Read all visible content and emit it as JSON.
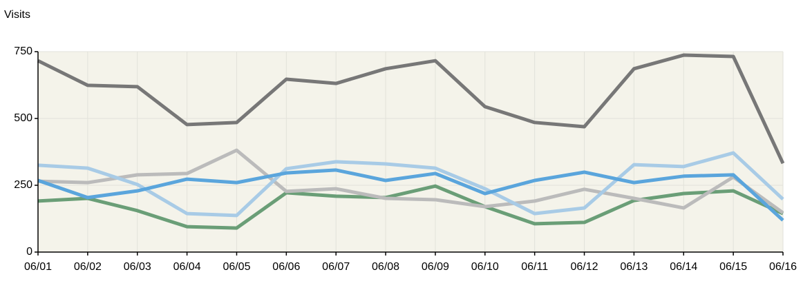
{
  "chart_data": {
    "type": "line",
    "title": "Visits",
    "categories": [
      "06/01",
      "06/02",
      "06/03",
      "06/04",
      "06/05",
      "06/06",
      "06/07",
      "06/08",
      "06/09",
      "06/10",
      "06/11",
      "06/12",
      "06/13",
      "06/14",
      "06/15",
      "06/16"
    ],
    "series": [
      {
        "color": "#6a9e77",
        "values": [
          191,
          201,
          155,
          95,
          90,
          222,
          209,
          204,
          247,
          170,
          106,
          111,
          193,
          219,
          229,
          144
        ]
      },
      {
        "color": "#bbbbbb",
        "values": [
          265,
          260,
          289,
          294,
          381,
          227,
          237,
          201,
          196,
          170,
          191,
          235,
          201,
          165,
          281,
          147
        ]
      },
      {
        "color": "#a8cbe6",
        "values": [
          325,
          314,
          253,
          144,
          137,
          312,
          338,
          330,
          314,
          237,
          144,
          165,
          327,
          320,
          371,
          198
        ]
      },
      {
        "color": "#5aa5dc",
        "values": [
          268,
          204,
          229,
          273,
          260,
          296,
          307,
          268,
          294,
          219,
          268,
          299,
          260,
          284,
          289,
          119
        ]
      },
      {
        "color": "#777777",
        "values": [
          716,
          624,
          619,
          477,
          485,
          647,
          631,
          686,
          716,
          544,
          485,
          469,
          686,
          737,
          732,
          332
        ]
      }
    ],
    "ylim": [
      0,
      750
    ],
    "yticks": [
      0,
      250,
      500,
      750
    ],
    "grid": true
  }
}
